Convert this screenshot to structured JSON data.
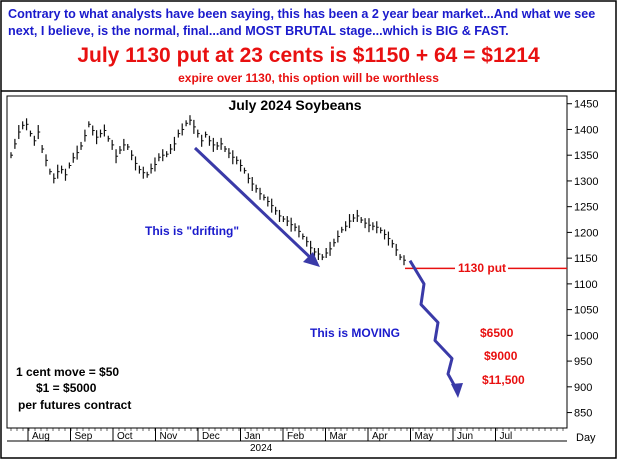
{
  "header": {
    "line1": "Contrary to what analysts have been saying, this has been a 2 year bear market...And what we see next, I believe, is the normal, final...and MOST BRUTAL stage...which is BIG & FAST.",
    "line2": "July 1130 put at 23 cents is $1150 + 64 = $1214",
    "line3": "expire over 1130, this option will be worthless"
  },
  "colors": {
    "header_blue": "#1a1acc",
    "red": "#e81010",
    "arrow_blue": "#3a3aa8",
    "price": "#111111"
  },
  "chart_data": {
    "type": "line",
    "title": "July 2024 Soybeans",
    "xlabel": "",
    "ylabel": "",
    "x_axis_label_right": "Day",
    "year_label": "2024",
    "months": [
      "Aug",
      "Sep",
      "Oct",
      "Nov",
      "Dec",
      "Jan",
      "Feb",
      "Mar",
      "Apr",
      "May",
      "Jun",
      "Jul"
    ],
    "yticks": [
      850,
      900,
      950,
      1000,
      1050,
      1100,
      1150,
      1200,
      1250,
      1300,
      1350,
      1400,
      1450
    ],
    "ylim": [
      820,
      1465
    ],
    "grid": false,
    "series": [
      {
        "values": [
          1350,
          1372,
          1395,
          1408,
          1410,
          1392,
          1378,
          1395,
          1362,
          1340,
          1318,
          1305,
          1318,
          1322,
          1312,
          1330,
          1345,
          1355,
          1368,
          1388,
          1410,
          1398,
          1385,
          1392,
          1398,
          1382,
          1370,
          1348,
          1360,
          1370,
          1366,
          1350,
          1334,
          1322,
          1316,
          1312,
          1324,
          1332,
          1346,
          1350,
          1352,
          1362,
          1372,
          1392,
          1400,
          1412,
          1418,
          1405,
          1392,
          1378,
          1390,
          1378,
          1370,
          1368,
          1372,
          1362,
          1354,
          1346,
          1340,
          1330,
          1320,
          1305,
          1294,
          1285,
          1275,
          1268,
          1260,
          1252,
          1242,
          1232,
          1226,
          1222,
          1215,
          1210,
          1202,
          1192,
          1182,
          1170,
          1162,
          1158,
          1152,
          1160,
          1168,
          1180,
          1192,
          1205,
          1212,
          1222,
          1228,
          1232,
          1224,
          1218,
          1214,
          1212,
          1210,
          1204,
          1196,
          1188,
          1178,
          1166,
          1152,
          1146
        ]
      }
    ],
    "projection": {
      "values": [
        1145,
        1100,
        1060,
        1025,
        990,
        955,
        925,
        890
      ],
      "level_label": "1130 put",
      "level": 1130
    },
    "annotations": {
      "drifting": "This is \"drifting\"",
      "moving": "This is MOVING",
      "targets": [
        "$6500",
        "$9000",
        "$11,500"
      ],
      "notes": [
        "1 cent move = $50",
        "$1 = $5000",
        "per futures contract"
      ]
    }
  }
}
